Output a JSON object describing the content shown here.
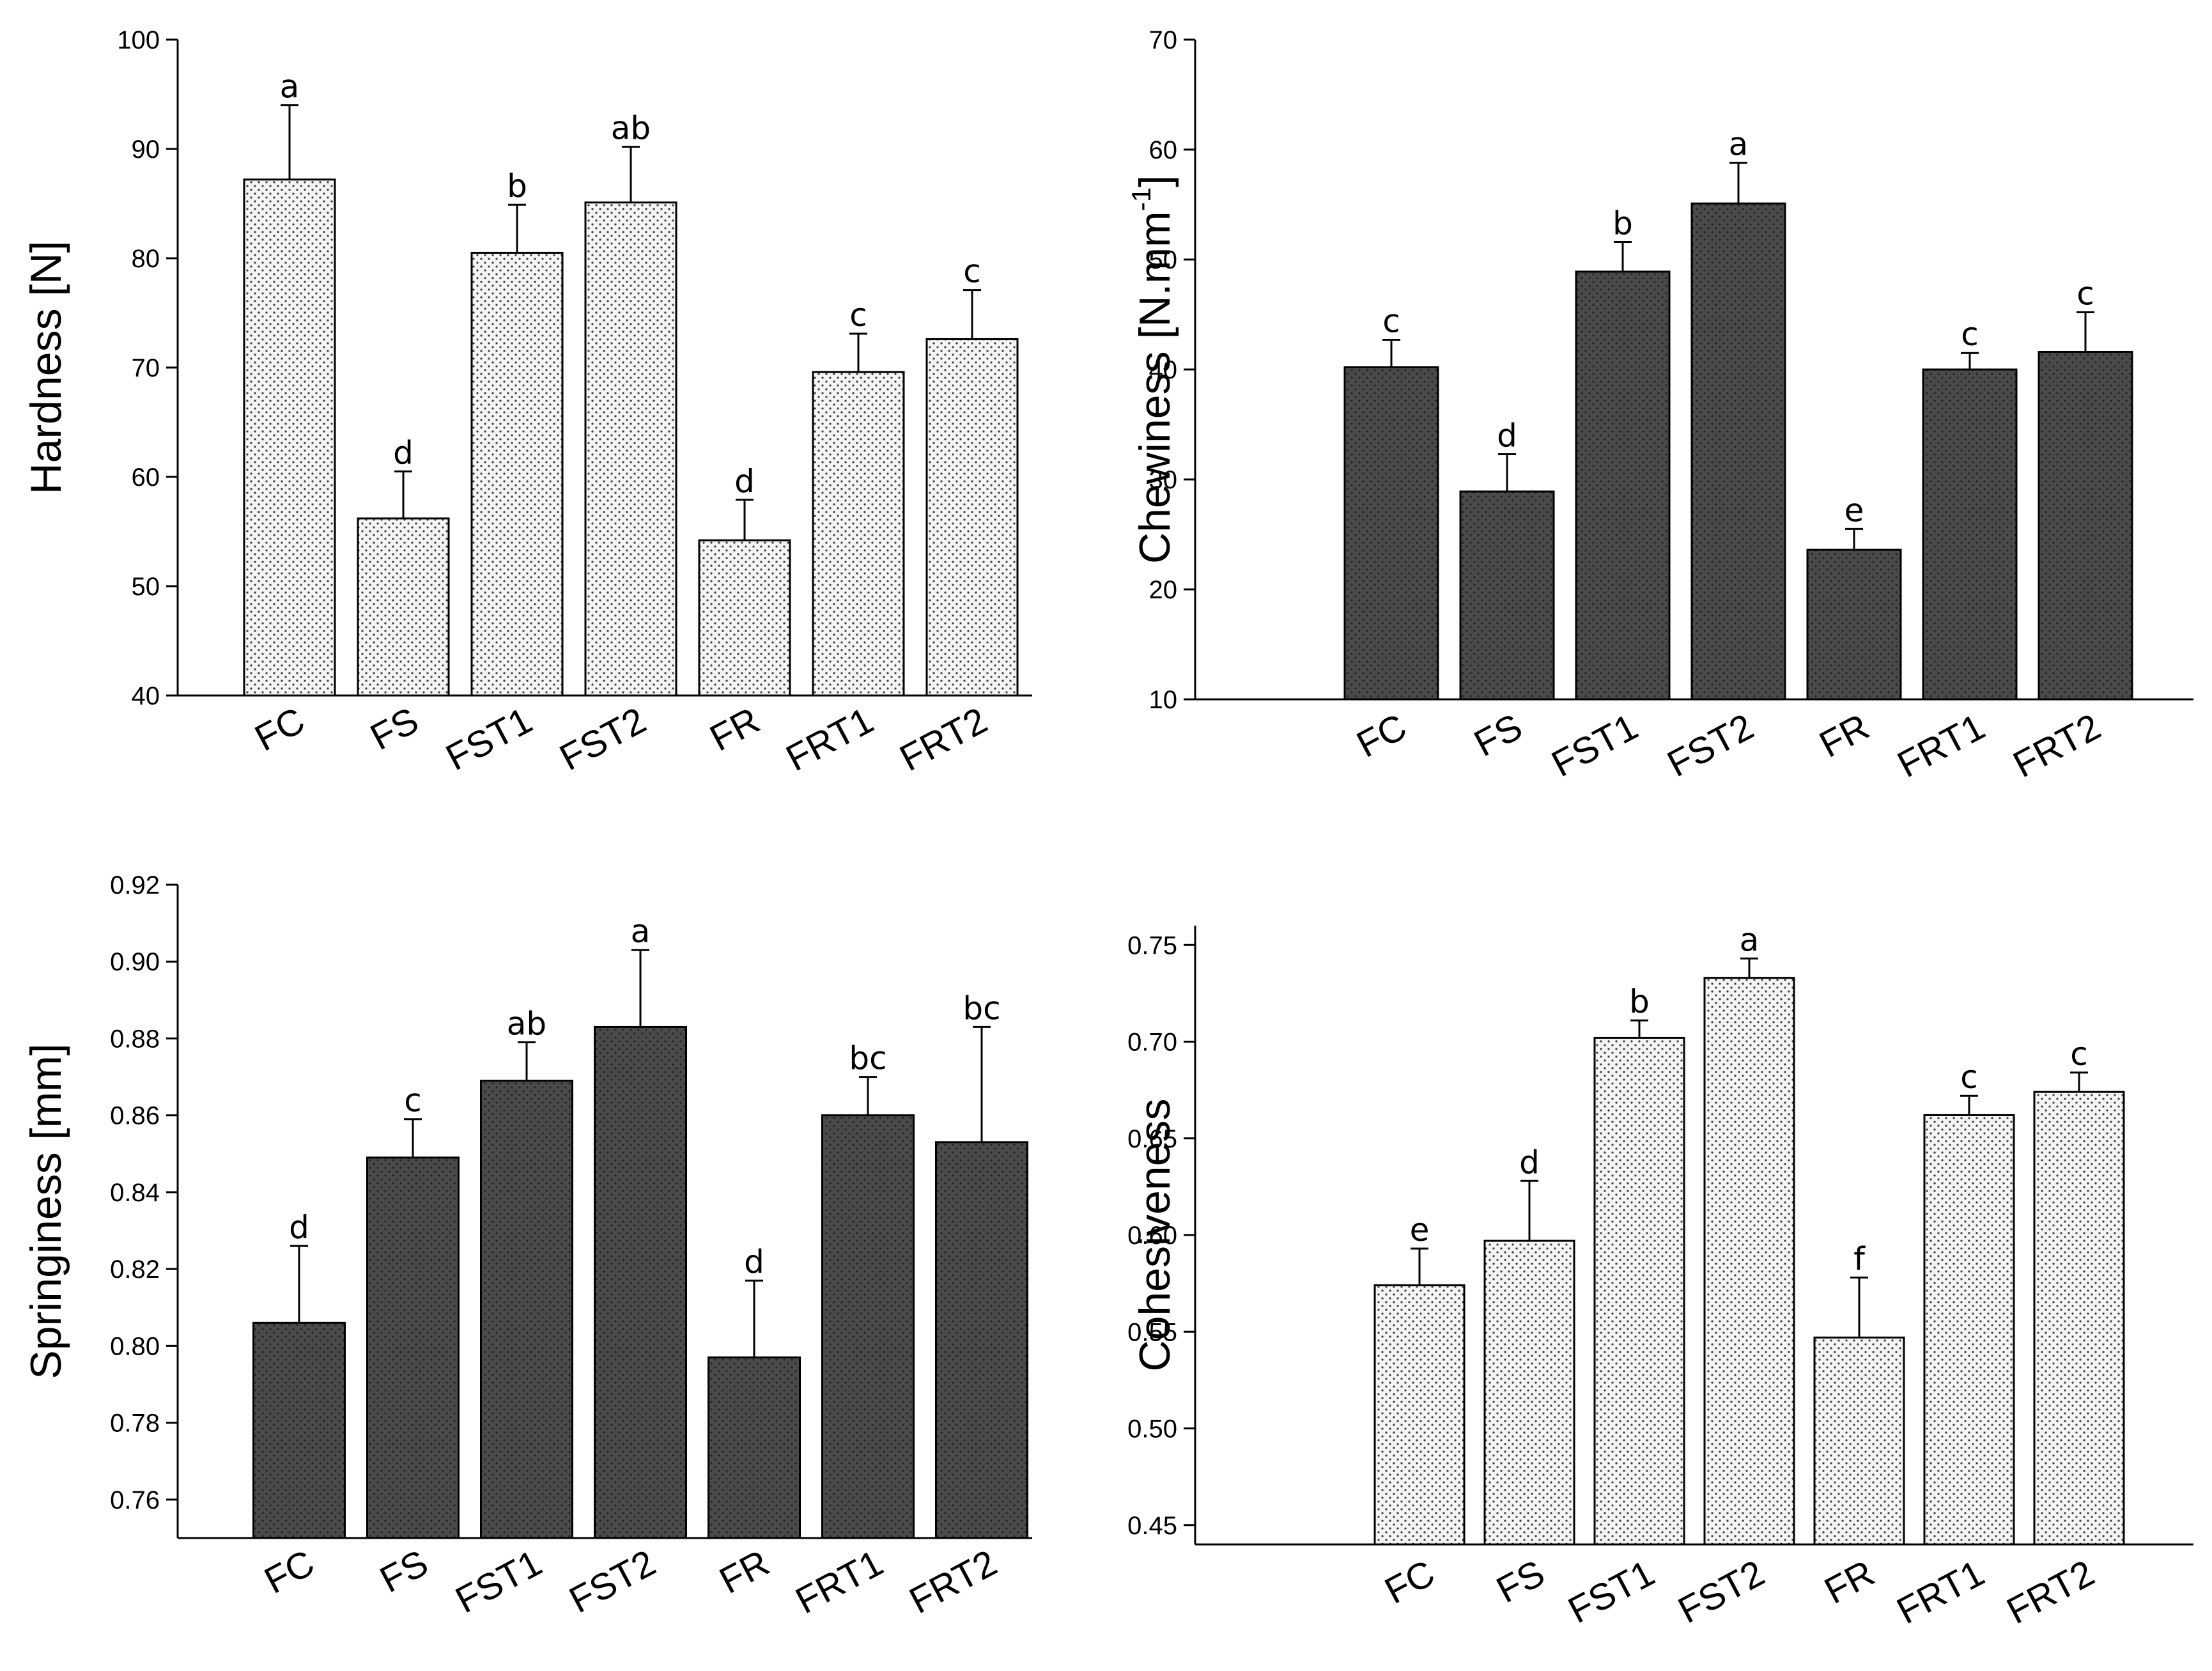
{
  "chart_data": [
    {
      "type": "bar",
      "style": "light",
      "categories": [
        "FC",
        "FS",
        "FST1",
        "FST2",
        "FR",
        "FRT1",
        "FRT2"
      ],
      "values": [
        87.2,
        56.2,
        80.5,
        85.1,
        54.2,
        69.6,
        72.6
      ],
      "errors": [
        6.8,
        4.3,
        4.4,
        5.1,
        3.7,
        3.5,
        4.5
      ],
      "significance": [
        "a",
        "d",
        "b",
        "ab",
        "d",
        "c",
        "c"
      ],
      "ylabel": "Hardness [N]",
      "ylim": [
        40,
        100
      ],
      "yticks": [
        "40",
        "50",
        "60",
        "70",
        "80",
        "90",
        "100"
      ],
      "grid": false
    },
    {
      "type": "bar",
      "style": "dark",
      "categories": [
        "FC",
        "FS",
        "FST1",
        "FST2",
        "FR",
        "FRT1",
        "FRT2"
      ],
      "values": [
        40.2,
        28.9,
        48.9,
        55.1,
        23.6,
        40.0,
        41.6
      ],
      "errors": [
        2.5,
        3.4,
        2.7,
        3.7,
        1.9,
        1.5,
        3.6
      ],
      "significance": [
        "c",
        "d",
        "b",
        "a",
        "e",
        "c",
        "c"
      ],
      "ylabel": "Chewiness [N.mm",
      "ylabel_superscript": "-1",
      "ylabel_suffix": "]",
      "ylim": [
        10,
        70
      ],
      "yticks": [
        "10",
        "20",
        "30",
        "40",
        "50",
        "60",
        "70"
      ],
      "grid": false
    },
    {
      "type": "bar",
      "style": "dark",
      "categories": [
        "FC",
        "FS",
        "FST1",
        "FST2",
        "FR",
        "FRT1",
        "FRT2"
      ],
      "values": [
        0.806,
        0.849,
        0.869,
        0.883,
        0.797,
        0.86,
        0.853
      ],
      "errors": [
        0.02,
        0.01,
        0.01,
        0.02,
        0.02,
        0.01,
        0.03
      ],
      "significance": [
        "d",
        "c",
        "ab",
        "a",
        "d",
        "bc",
        "bc"
      ],
      "ylabel": "Springiness [mm]",
      "ylim": [
        0.75,
        0.92
      ],
      "yticks": [
        "0.76",
        "0.78",
        "0.80",
        "0.82",
        "0.84",
        "0.86",
        "0.88",
        "0.90",
        "0.92"
      ],
      "grid": false
    },
    {
      "type": "bar",
      "style": "light",
      "categories": [
        "FC",
        "FS",
        "FST1",
        "FST2",
        "FR",
        "FRT1",
        "FRT2"
      ],
      "values": [
        0.574,
        0.597,
        0.702,
        0.733,
        0.547,
        0.662,
        0.674
      ],
      "errors": [
        0.019,
        0.031,
        0.009,
        0.01,
        0.031,
        0.01,
        0.01
      ],
      "significance": [
        "e",
        "d",
        "b",
        "a",
        "f",
        "c",
        "c"
      ],
      "ylabel": "Cohesiveness",
      "ylim": [
        0.44,
        0.76
      ],
      "yticks": [
        "0.45",
        "0.50",
        "0.55",
        "0.60",
        "0.65",
        "0.70",
        "0.75"
      ],
      "grid": false
    }
  ],
  "colors": {
    "light_fill": "#f4f4f4",
    "light_dots": "#3a3a3a",
    "dark_fill": "#4a4a4a",
    "dark_dots": "#1e1e1e",
    "stroke": "#000000"
  }
}
